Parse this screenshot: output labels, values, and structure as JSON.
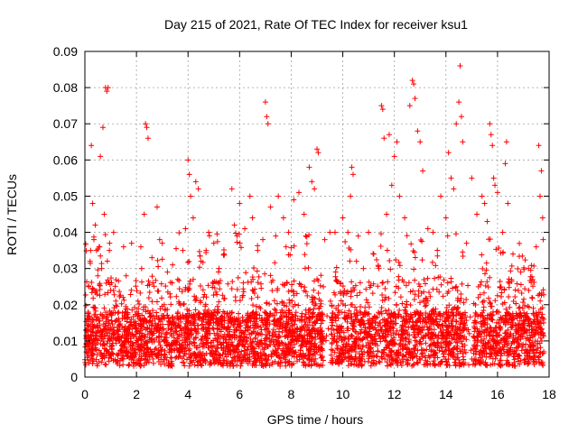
{
  "chart_data": {
    "type": "scatter",
    "title": "Day 215 of 2021, Rate Of TEC Index for receiver ksu1",
    "xlabel": "GPS time / hours",
    "ylabel": "ROTI / TECUs",
    "xlim": [
      0,
      18
    ],
    "ylim": [
      0,
      0.09
    ],
    "x_ticks": [
      0,
      2,
      4,
      6,
      8,
      10,
      12,
      14,
      16,
      18
    ],
    "x_tick_labels": [
      "0",
      "2",
      "4",
      "6",
      "8",
      "10",
      "12",
      "14",
      "16",
      "18"
    ],
    "y_ticks": [
      0,
      0.01,
      0.02,
      0.03,
      0.04,
      0.05,
      0.06,
      0.07,
      0.08,
      0.09
    ],
    "y_tick_labels": [
      "0",
      "0.01",
      "0.02",
      "0.03",
      "0.04",
      "0.05",
      "0.06",
      "0.07",
      "0.08",
      "0.09"
    ],
    "grid": true,
    "marker": "plus",
    "color": "#ff0000",
    "series": [
      {
        "name": "ROTI",
        "points": [
          [
            0.05,
            0.009
          ],
          [
            0.1,
            0.016
          ],
          [
            0.15,
            0.025
          ],
          [
            0.2,
            0.032
          ],
          [
            0.25,
            0.064
          ],
          [
            0.3,
            0.048
          ],
          [
            0.35,
            0.038
          ],
          [
            0.4,
            0.042
          ],
          [
            0.45,
            0.035
          ],
          [
            0.5,
            0.028
          ],
          [
            0.55,
            0.036
          ],
          [
            0.6,
            0.061
          ],
          [
            0.65,
            0.03
          ],
          [
            0.7,
            0.069
          ],
          [
            0.75,
            0.045
          ],
          [
            0.8,
            0.08
          ],
          [
            0.85,
            0.079
          ],
          [
            0.9,
            0.08
          ],
          [
            0.95,
            0.035
          ],
          [
            1.0,
            0.024
          ],
          [
            1.2,
            0.021
          ],
          [
            1.5,
            0.036
          ],
          [
            1.6,
            0.028
          ],
          [
            1.8,
            0.024
          ],
          [
            2.0,
            0.018
          ],
          [
            2.2,
            0.03
          ],
          [
            2.3,
            0.045
          ],
          [
            2.35,
            0.07
          ],
          [
            2.4,
            0.069
          ],
          [
            2.45,
            0.066
          ],
          [
            2.6,
            0.033
          ],
          [
            2.8,
            0.047
          ],
          [
            2.9,
            0.038
          ],
          [
            3.0,
            0.037
          ],
          [
            3.2,
            0.029
          ],
          [
            3.4,
            0.031
          ],
          [
            3.6,
            0.027
          ],
          [
            3.8,
            0.035
          ],
          [
            3.9,
            0.041
          ],
          [
            4.0,
            0.06
          ],
          [
            4.05,
            0.056
          ],
          [
            4.1,
            0.05
          ],
          [
            4.2,
            0.044
          ],
          [
            4.3,
            0.054
          ],
          [
            4.4,
            0.052
          ],
          [
            4.5,
            0.032
          ],
          [
            4.7,
            0.035
          ],
          [
            4.8,
            0.04
          ],
          [
            5.0,
            0.037
          ],
          [
            5.2,
            0.03
          ],
          [
            5.4,
            0.034
          ],
          [
            5.7,
            0.052
          ],
          [
            5.8,
            0.042
          ],
          [
            5.9,
            0.039
          ],
          [
            6.0,
            0.048
          ],
          [
            6.2,
            0.041
          ],
          [
            6.4,
            0.05
          ],
          [
            6.5,
            0.044
          ],
          [
            6.7,
            0.035
          ],
          [
            6.9,
            0.038
          ],
          [
            7.0,
            0.076
          ],
          [
            7.05,
            0.072
          ],
          [
            7.1,
            0.07
          ],
          [
            7.2,
            0.047
          ],
          [
            7.4,
            0.039
          ],
          [
            7.5,
            0.05
          ],
          [
            7.7,
            0.044
          ],
          [
            7.8,
            0.036
          ],
          [
            7.9,
            0.04
          ],
          [
            8.1,
            0.049
          ],
          [
            8.3,
            0.051
          ],
          [
            8.5,
            0.045
          ],
          [
            8.7,
            0.058
          ],
          [
            8.8,
            0.054
          ],
          [
            8.9,
            0.052
          ],
          [
            9.0,
            0.063
          ],
          [
            9.05,
            0.062
          ],
          [
            9.3,
            0.038
          ],
          [
            9.5,
            0.04
          ],
          [
            9.7,
            0.04
          ],
          [
            10.0,
            0.044
          ],
          [
            10.2,
            0.04
          ],
          [
            10.3,
            0.05
          ],
          [
            10.35,
            0.058
          ],
          [
            10.4,
            0.056
          ],
          [
            10.6,
            0.039
          ],
          [
            10.8,
            0.03
          ],
          [
            11.0,
            0.04
          ],
          [
            11.2,
            0.034
          ],
          [
            11.4,
            0.03
          ],
          [
            11.5,
            0.075
          ],
          [
            11.55,
            0.074
          ],
          [
            11.6,
            0.066
          ],
          [
            11.7,
            0.045
          ],
          [
            11.8,
            0.067
          ],
          [
            11.9,
            0.053
          ],
          [
            12.0,
            0.061
          ],
          [
            12.1,
            0.065
          ],
          [
            12.2,
            0.05
          ],
          [
            12.4,
            0.044
          ],
          [
            12.6,
            0.075
          ],
          [
            12.7,
            0.082
          ],
          [
            12.75,
            0.081
          ],
          [
            12.8,
            0.077
          ],
          [
            12.9,
            0.068
          ],
          [
            13.0,
            0.065
          ],
          [
            13.1,
            0.057
          ],
          [
            13.3,
            0.041
          ],
          [
            13.5,
            0.04
          ],
          [
            13.8,
            0.05
          ],
          [
            14.0,
            0.044
          ],
          [
            14.1,
            0.062
          ],
          [
            14.2,
            0.055
          ],
          [
            14.3,
            0.052
          ],
          [
            14.4,
            0.07
          ],
          [
            14.5,
            0.076
          ],
          [
            14.55,
            0.086
          ],
          [
            14.6,
            0.072
          ],
          [
            14.65,
            0.065
          ],
          [
            14.8,
            0.037
          ],
          [
            15.0,
            0.055
          ],
          [
            15.2,
            0.045
          ],
          [
            15.4,
            0.05
          ],
          [
            15.5,
            0.048
          ],
          [
            15.6,
            0.043
          ],
          [
            15.7,
            0.07
          ],
          [
            15.75,
            0.067
          ],
          [
            15.8,
            0.064
          ],
          [
            15.85,
            0.055
          ],
          [
            15.9,
            0.053
          ],
          [
            16.0,
            0.051
          ],
          [
            16.2,
            0.04
          ],
          [
            16.3,
            0.059
          ],
          [
            16.35,
            0.065
          ],
          [
            16.4,
            0.048
          ],
          [
            16.6,
            0.034
          ],
          [
            16.9,
            0.029
          ],
          [
            17.2,
            0.03
          ],
          [
            17.5,
            0.036
          ],
          [
            17.6,
            0.064
          ],
          [
            17.65,
            0.05
          ],
          [
            17.7,
            0.057
          ],
          [
            17.75,
            0.044
          ]
        ],
        "density_note": "Dense continuous cloud of points between 0.003 and 0.02 TECU across 0-17.8 h with sparser points up to ~0.04"
      }
    ]
  }
}
